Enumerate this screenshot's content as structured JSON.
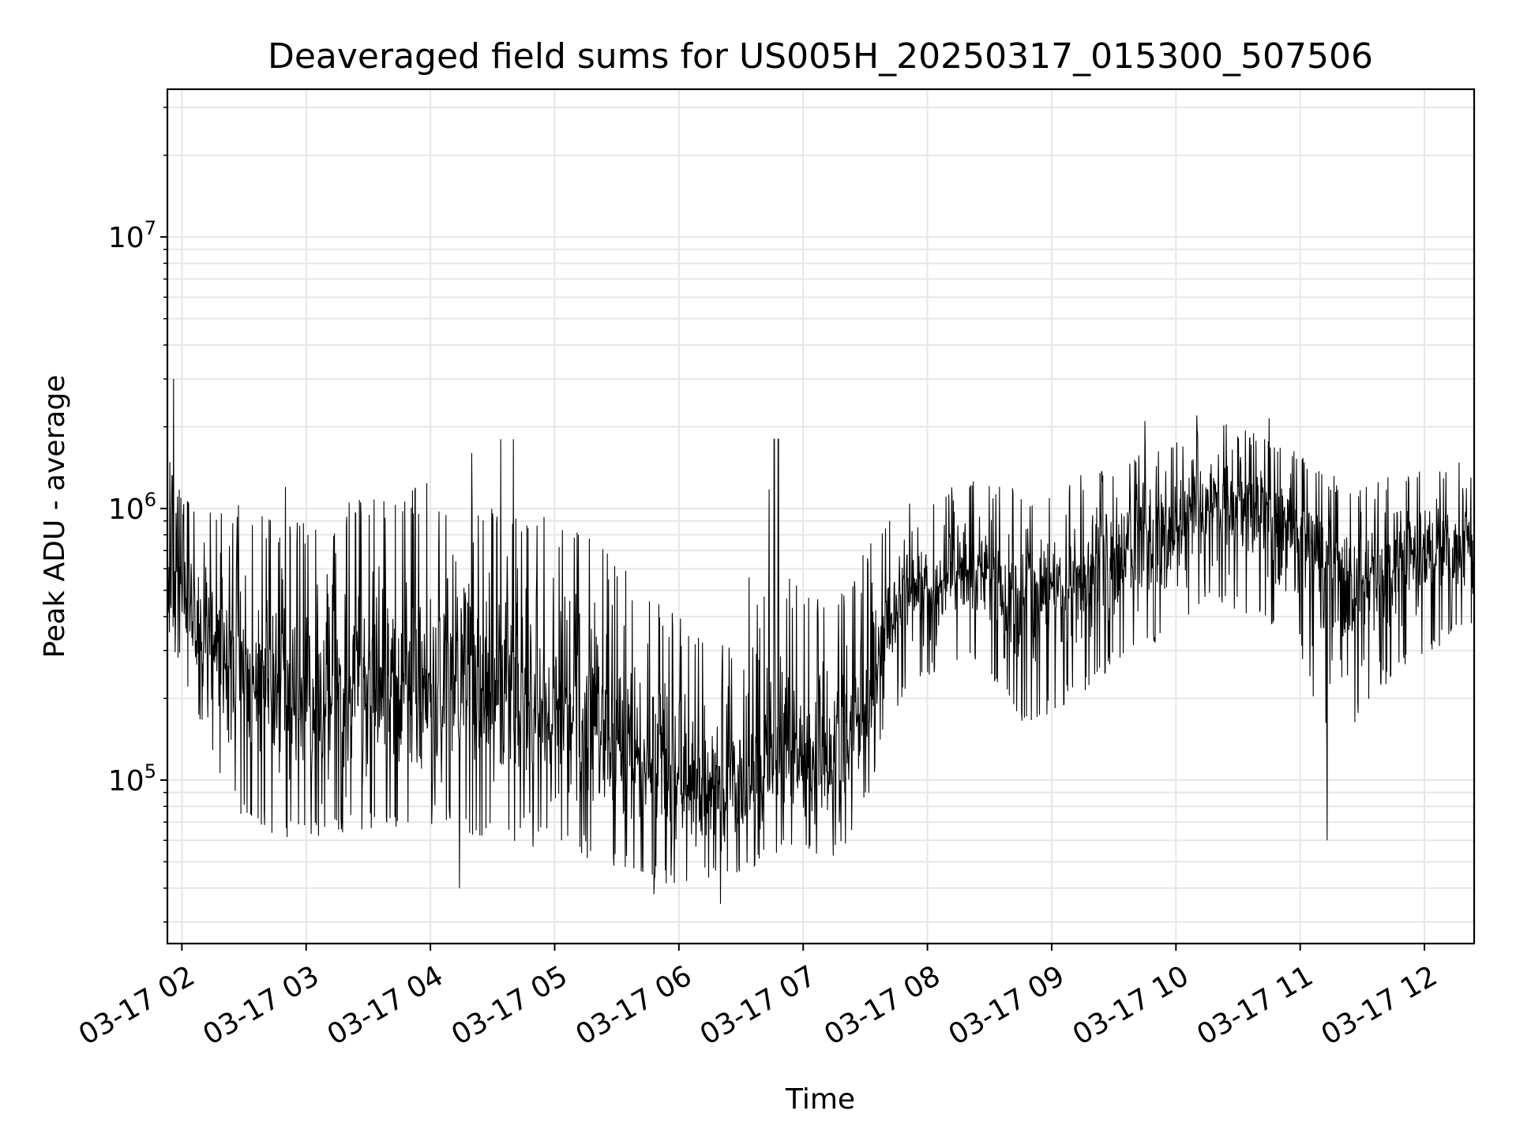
{
  "chart_data": {
    "type": "line",
    "title": "Deaveraged field sums for US005H_20250317_015300_507506",
    "xlabel": "Time",
    "ylabel": "Peak ADU - average",
    "y_scale": "log",
    "ylim": [
      25000,
      35000000
    ],
    "xlim": [
      "2025-03-17 01:53",
      "2025-03-17 12:24"
    ],
    "grid": true,
    "line_color": "#000000",
    "x_ticks": [
      {
        "label": "03-17 02",
        "time": "2025-03-17 02:00"
      },
      {
        "label": "03-17 03",
        "time": "2025-03-17 03:00"
      },
      {
        "label": "03-17 04",
        "time": "2025-03-17 04:00"
      },
      {
        "label": "03-17 05",
        "time": "2025-03-17 05:00"
      },
      {
        "label": "03-17 06",
        "time": "2025-03-17 06:00"
      },
      {
        "label": "03-17 07",
        "time": "2025-03-17 07:00"
      },
      {
        "label": "03-17 08",
        "time": "2025-03-17 08:00"
      },
      {
        "label": "03-17 09",
        "time": "2025-03-17 09:00"
      },
      {
        "label": "03-17 10",
        "time": "2025-03-17 10:00"
      },
      {
        "label": "03-17 11",
        "time": "2025-03-17 11:00"
      },
      {
        "label": "03-17 12",
        "time": "2025-03-17 12:00"
      }
    ],
    "y_ticks": [
      {
        "base": "10",
        "exp": "5",
        "value": 100000
      },
      {
        "base": "10",
        "exp": "6",
        "value": 1000000
      },
      {
        "base": "10",
        "exp": "7",
        "value": 10000000
      }
    ],
    "series": [
      {
        "x": [
          "2025-03-17 01:53",
          "2025-03-17 02:00",
          "2025-03-17 02:10",
          "2025-03-17 02:20",
          "2025-03-17 02:30",
          "2025-03-17 02:40",
          "2025-03-17 02:50",
          "2025-03-17 03:00",
          "2025-03-17 03:10",
          "2025-03-17 03:20",
          "2025-03-17 03:30",
          "2025-03-17 03:40",
          "2025-03-17 03:50",
          "2025-03-17 04:00",
          "2025-03-17 04:10",
          "2025-03-17 04:20",
          "2025-03-17 04:30",
          "2025-03-17 04:40",
          "2025-03-17 04:50",
          "2025-03-17 05:00",
          "2025-03-17 05:10",
          "2025-03-17 05:20",
          "2025-03-17 05:30",
          "2025-03-17 05:40",
          "2025-03-17 05:50",
          "2025-03-17 06:00",
          "2025-03-17 06:10",
          "2025-03-17 06:20",
          "2025-03-17 06:30",
          "2025-03-17 06:40",
          "2025-03-17 06:50",
          "2025-03-17 07:00",
          "2025-03-17 07:10",
          "2025-03-17 07:20",
          "2025-03-17 07:30",
          "2025-03-17 07:40",
          "2025-03-17 07:50",
          "2025-03-17 08:00",
          "2025-03-17 08:10",
          "2025-03-17 08:20",
          "2025-03-17 08:30",
          "2025-03-17 08:40",
          "2025-03-17 08:50",
          "2025-03-17 09:00",
          "2025-03-17 09:10",
          "2025-03-17 09:20",
          "2025-03-17 09:30",
          "2025-03-17 09:40",
          "2025-03-17 09:50",
          "2025-03-17 10:00",
          "2025-03-17 10:10",
          "2025-03-17 10:20",
          "2025-03-17 10:30",
          "2025-03-17 10:40",
          "2025-03-17 10:50",
          "2025-03-17 11:00",
          "2025-03-17 11:10",
          "2025-03-17 11:20",
          "2025-03-17 11:30",
          "2025-03-17 11:40",
          "2025-03-17 11:50",
          "2025-03-17 12:00",
          "2025-03-17 12:10",
          "2025-03-17 12:20",
          "2025-03-17 12:24"
        ],
        "median": [
          500000,
          450000,
          380000,
          300000,
          250000,
          220000,
          200000,
          190000,
          200000,
          210000,
          220000,
          230000,
          240000,
          250000,
          240000,
          230000,
          220000,
          210000,
          200000,
          190000,
          180000,
          160000,
          140000,
          120000,
          105000,
          95000,
          90000,
          88000,
          85000,
          100000,
          130000,
          110000,
          105000,
          120000,
          200000,
          350000,
          450000,
          480000,
          520000,
          580000,
          560000,
          520000,
          500000,
          520000,
          580000,
          620000,
          700000,
          780000,
          820000,
          880000,
          1000000,
          1100000,
          1050000,
          950000,
          900000,
          800000,
          650000,
          550000,
          520000,
          580000,
          650000,
          700000,
          780000,
          820000,
          800000
        ],
        "low": [
          350000,
          250000,
          150000,
          90000,
          70000,
          65000,
          60000,
          58000,
          60000,
          62000,
          64000,
          65000,
          66000,
          68000,
          66000,
          62000,
          60000,
          58000,
          56000,
          55000,
          53000,
          50000,
          48000,
          45000,
          42000,
          40000,
          42000,
          45000,
          44000,
          50000,
          55000,
          52000,
          50000,
          55000,
          80000,
          150000,
          220000,
          240000,
          260000,
          280000,
          240000,
          180000,
          150000,
          170000,
          200000,
          220000,
          260000,
          300000,
          320000,
          340000,
          400000,
          450000,
          420000,
          380000,
          350000,
          300000,
          160000,
          120000,
          180000,
          220000,
          260000,
          290000,
          320000,
          360000,
          350000
        ],
        "high": [
          1600000,
          1100000,
          1100000,
          1050000,
          1050000,
          1000000,
          950000,
          1000000,
          1050000,
          1100000,
          1100000,
          1150000,
          1200000,
          1250000,
          1200000,
          1200000,
          1100000,
          1050000,
          1000000,
          900000,
          850000,
          750000,
          650000,
          550000,
          450000,
          400000,
          380000,
          350000,
          350000,
          1800000,
          600000,
          500000,
          480000,
          500000,
          700000,
          900000,
          1100000,
          1150000,
          1200000,
          1300000,
          1250000,
          1200000,
          1150000,
          1200000,
          1300000,
          1400000,
          1500000,
          1600000,
          1700000,
          1800000,
          2000000,
          2100000,
          2000000,
          1900000,
          1800000,
          1600000,
          1400000,
          1300000,
          1250000,
          1300000,
          1350000,
          1400000,
          1450000,
          1500000,
          1400000
        ],
        "spikes": [
          {
            "time": "2025-03-17 01:56",
            "value": 3000000
          },
          {
            "time": "2025-03-17 02:50",
            "value": 1200000
          },
          {
            "time": "2025-03-17 04:14",
            "value": 40000
          },
          {
            "time": "2025-03-17 04:20",
            "value": 1600000
          },
          {
            "time": "2025-03-17 04:34",
            "value": 1800000
          },
          {
            "time": "2025-03-17 04:40",
            "value": 1800000
          },
          {
            "time": "2025-03-17 05:48",
            "value": 38000
          },
          {
            "time": "2025-03-17 06:20",
            "value": 35000
          },
          {
            "time": "2025-03-17 06:46",
            "value": 1800000
          },
          {
            "time": "2025-03-17 06:48",
            "value": 1800000
          },
          {
            "time": "2025-03-17 09:45",
            "value": 2100000
          },
          {
            "time": "2025-03-17 10:10",
            "value": 2200000
          },
          {
            "time": "2025-03-17 10:45",
            "value": 2150000
          },
          {
            "time": "2025-03-17 11:13",
            "value": 60000
          }
        ]
      }
    ]
  }
}
